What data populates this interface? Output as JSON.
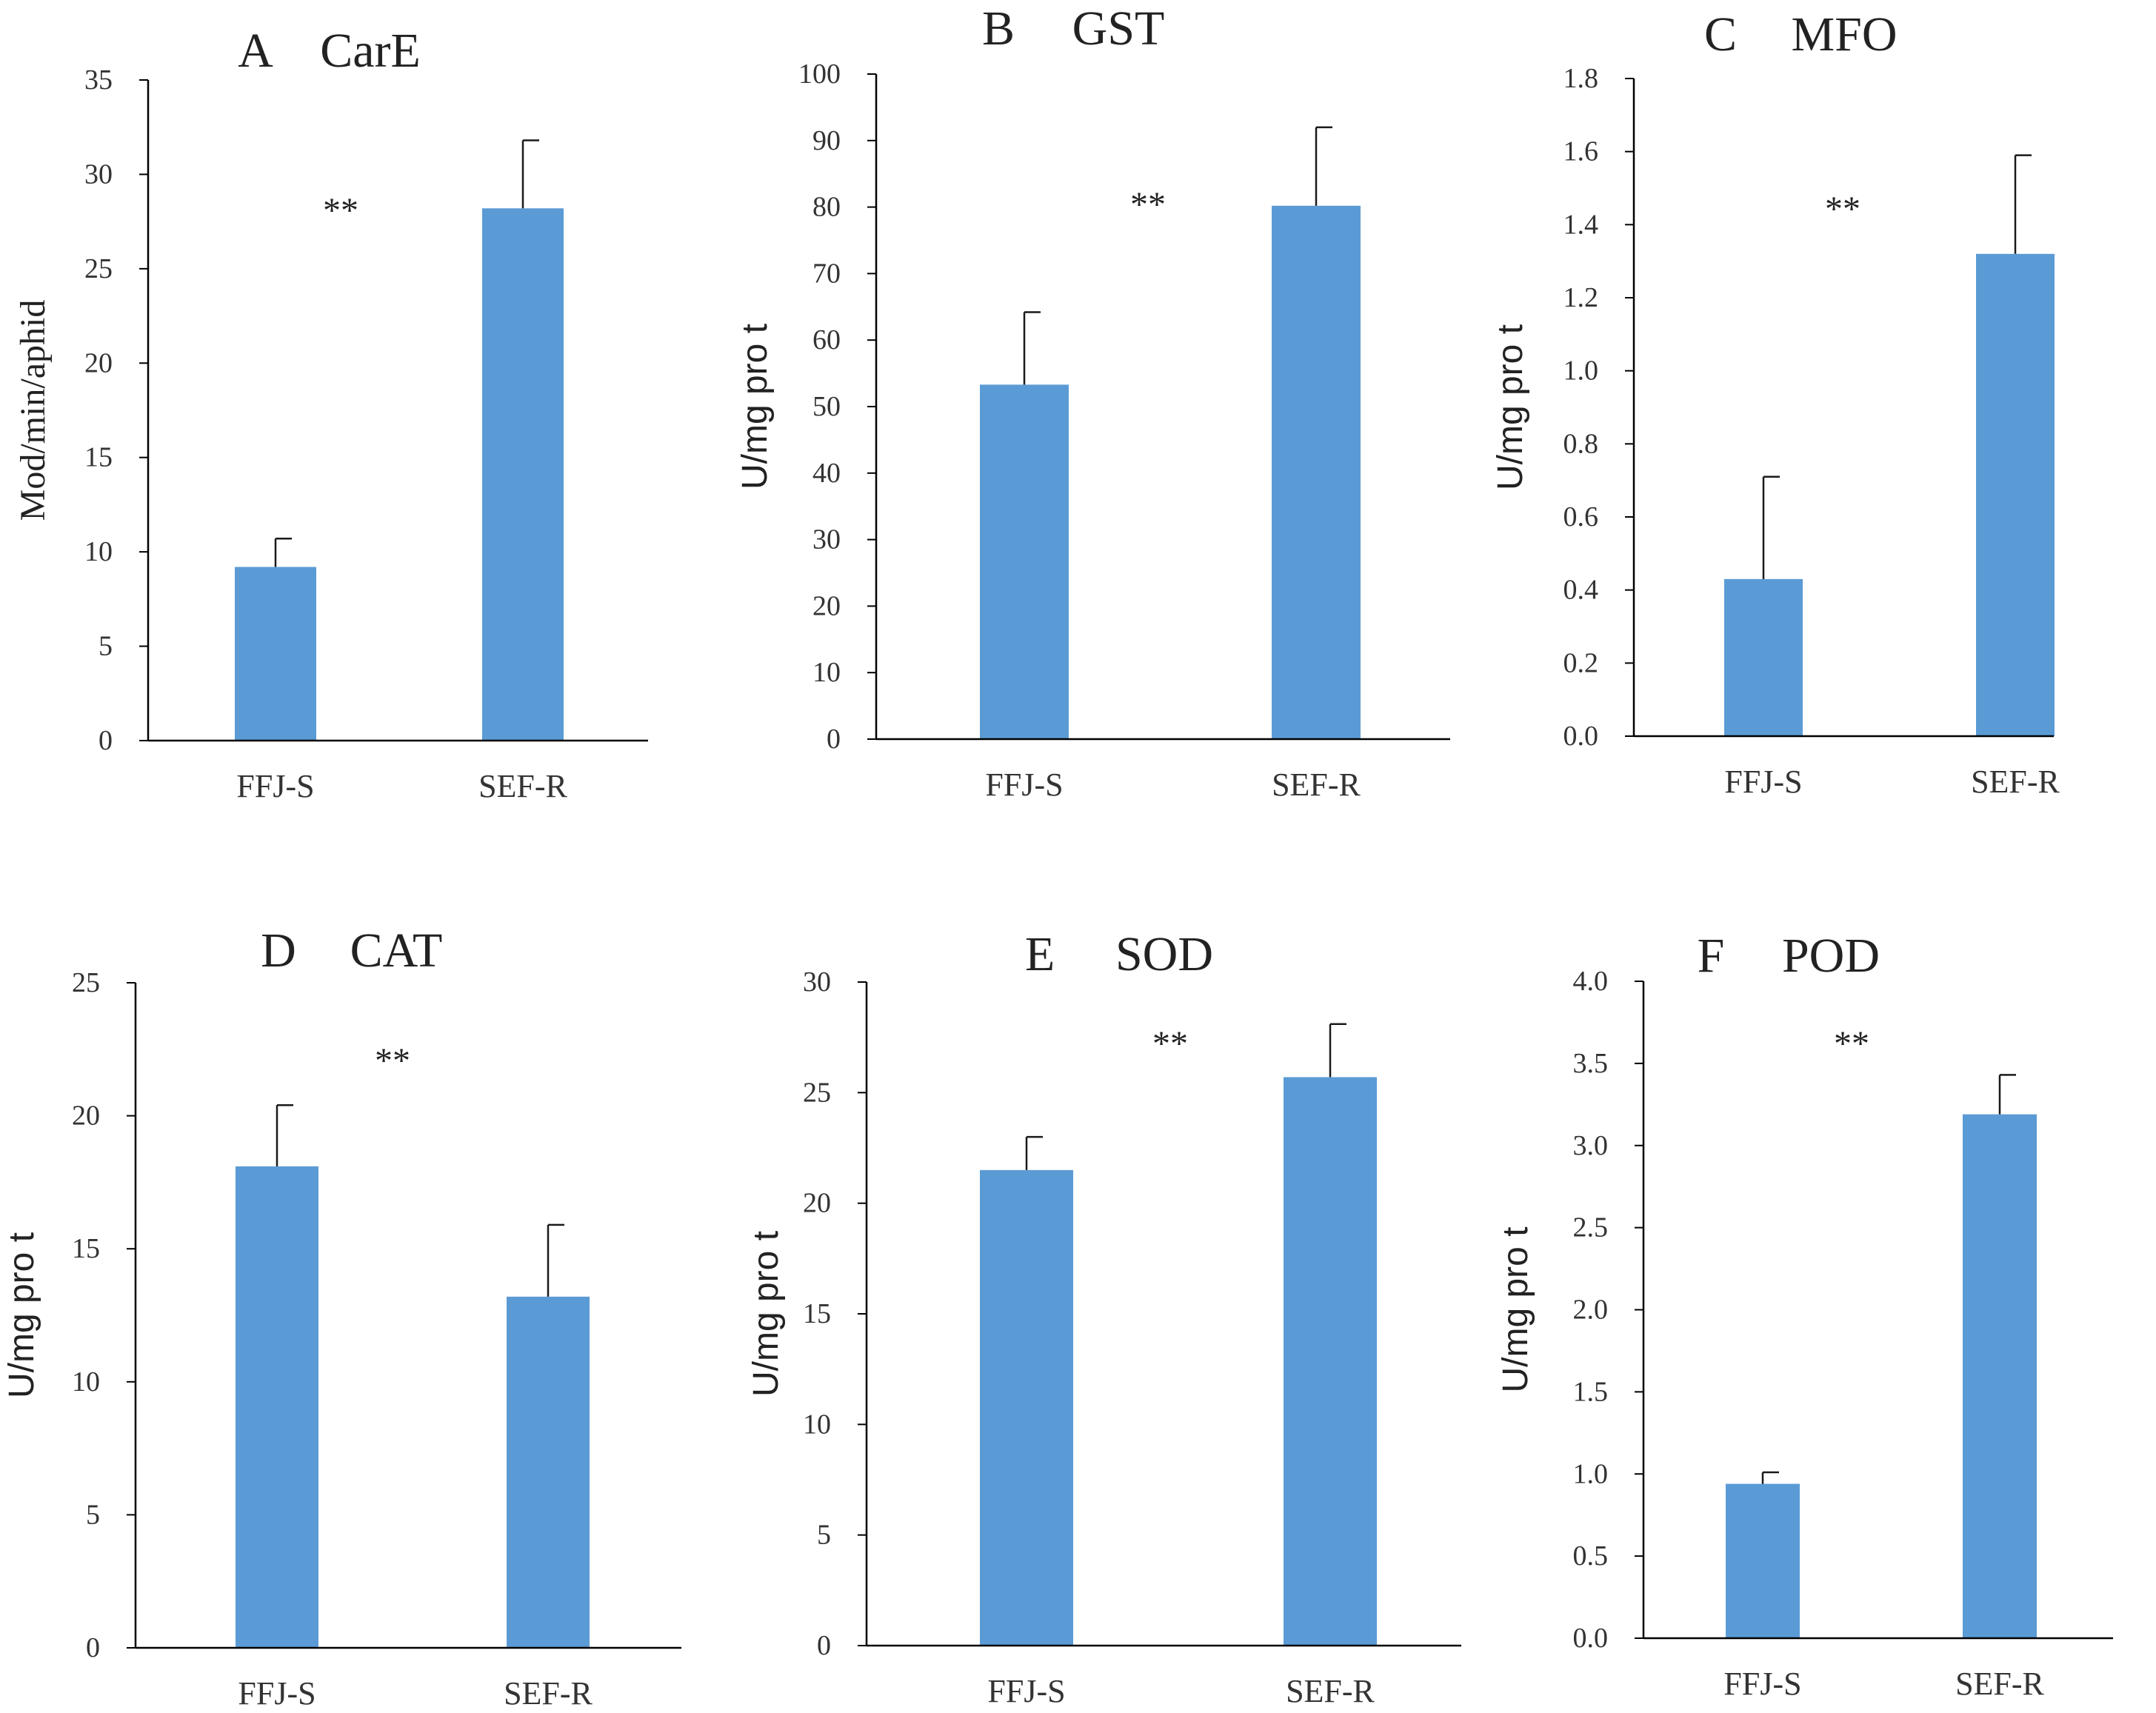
{
  "colors": {
    "bar": "#5b9bd5",
    "axis": "#000000",
    "error": "#1a1a1a",
    "text": "#222222"
  },
  "chart_data": [
    {
      "id": "A",
      "type": "bar",
      "panel_letter": "A",
      "title": "CarE",
      "ylabel": "Mod/min/aphid",
      "ylabel_font": "serif",
      "categories": [
        "FFJ-S",
        "SEF-R"
      ],
      "values": [
        9.2,
        28.2
      ],
      "errors": [
        1.5,
        3.6
      ],
      "ylim": [
        0,
        35
      ],
      "yticks": [
        0,
        5,
        10,
        15,
        20,
        25,
        30,
        35
      ],
      "tick_decimals": 0,
      "annotation": "**"
    },
    {
      "id": "B",
      "type": "bar",
      "panel_letter": "B",
      "title": "GST",
      "ylabel": "U/mg pro t",
      "ylabel_font": "sans",
      "categories": [
        "FFJ-S",
        "SEF-R"
      ],
      "values": [
        53.3,
        80.2
      ],
      "errors": [
        10.9,
        11.8
      ],
      "ylim": [
        0,
        100
      ],
      "yticks": [
        0,
        10,
        20,
        30,
        40,
        50,
        60,
        70,
        80,
        90,
        100
      ],
      "tick_decimals": 0,
      "annotation": "**"
    },
    {
      "id": "C",
      "type": "bar",
      "panel_letter": "C",
      "title": "MFO",
      "ylabel": "U/mg pro t",
      "ylabel_font": "sans",
      "categories": [
        "FFJ-S",
        "SEF-R"
      ],
      "values": [
        0.43,
        1.32
      ],
      "errors": [
        0.28,
        0.27
      ],
      "ylim": [
        0,
        1.8
      ],
      "yticks": [
        0,
        0.2,
        0.4,
        0.6,
        0.8,
        1.0,
        1.2,
        1.4,
        1.6,
        1.8
      ],
      "tick_decimals": 1,
      "annotation": "**"
    },
    {
      "id": "D",
      "type": "bar",
      "panel_letter": "D",
      "title": "CAT",
      "ylabel": "U/mg pro t",
      "ylabel_font": "sans",
      "categories": [
        "FFJ-S",
        "SEF-R"
      ],
      "values": [
        18.1,
        13.2
      ],
      "errors": [
        2.3,
        2.7
      ],
      "ylim": [
        0,
        25
      ],
      "yticks": [
        0,
        5,
        10,
        15,
        20,
        25
      ],
      "tick_decimals": 0,
      "annotation": "**"
    },
    {
      "id": "E",
      "type": "bar",
      "panel_letter": "E",
      "title": "SOD",
      "ylabel": "U/mg pro t",
      "ylabel_font": "sans",
      "categories": [
        "FFJ-S",
        "SEF-R"
      ],
      "values": [
        21.5,
        25.7
      ],
      "errors": [
        1.5,
        2.4
      ],
      "ylim": [
        0,
        30
      ],
      "yticks": [
        0,
        5,
        10,
        15,
        20,
        25,
        30
      ],
      "tick_decimals": 0,
      "annotation": "**"
    },
    {
      "id": "F",
      "type": "bar",
      "panel_letter": "F",
      "title": "POD",
      "ylabel": "U/mg pro t",
      "ylabel_font": "sans",
      "categories": [
        "FFJ-S",
        "SEF-R"
      ],
      "values": [
        0.94,
        3.19
      ],
      "errors": [
        0.07,
        0.24
      ],
      "ylim": [
        0,
        4.0
      ],
      "yticks": [
        0,
        0.5,
        1.0,
        1.5,
        2.0,
        2.5,
        3.0,
        3.5,
        4.0
      ],
      "tick_decimals": 1,
      "annotation": "**"
    }
  ]
}
